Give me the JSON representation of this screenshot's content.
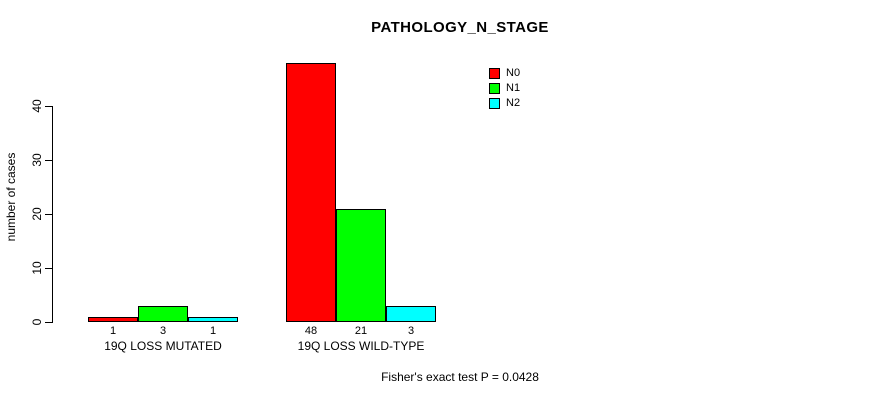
{
  "chart_data": {
    "type": "bar",
    "title": "PATHOLOGY_N_STAGE",
    "ylabel": "number of cases",
    "xlabel": "",
    "categories": [
      "19Q LOSS MUTATED",
      "19Q LOSS WILD-TYPE"
    ],
    "series": [
      {
        "name": "N0",
        "color": "#FF0000",
        "values": [
          1,
          48
        ]
      },
      {
        "name": "N1",
        "color": "#00FF00",
        "values": [
          3,
          21
        ]
      },
      {
        "name": "N2",
        "color": "#00FFFF",
        "values": [
          1,
          3
        ]
      }
    ],
    "yticks": [
      0,
      10,
      20,
      30,
      40
    ],
    "ylim": [
      0,
      48
    ],
    "grid": false,
    "bar_values_shown": true,
    "legend_position": "top-right",
    "annotation": "Fisher's exact test P = 0.0428"
  }
}
